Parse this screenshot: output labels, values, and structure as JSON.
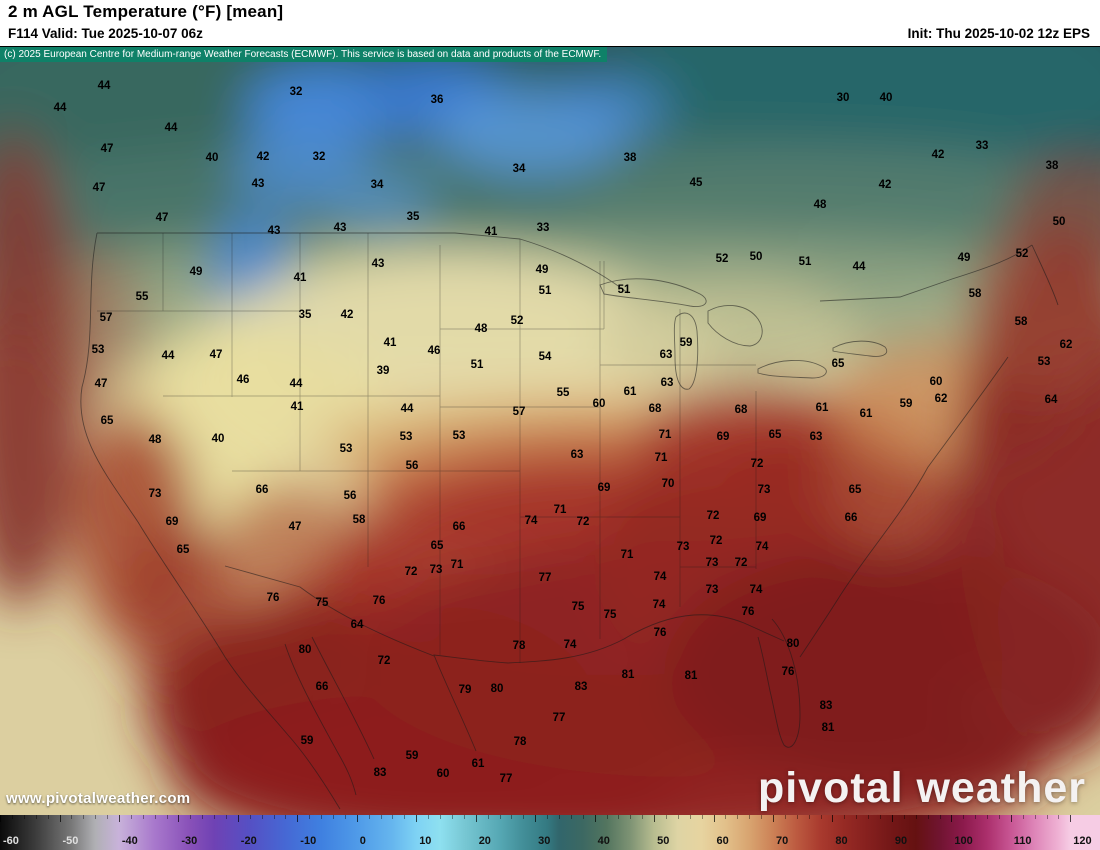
{
  "header": {
    "title": "2 m AGL Temperature (°F) [mean]",
    "valid_label": "F114 Valid: Tue 2025-10-07 06z",
    "init_label": "Init: Thu 2025-10-02 12z EPS"
  },
  "copyright_notice": "(c) 2025 European Centre for Medium-range Weather Forecasts (ECMWF). This service is based on data and products of the ECMWF.",
  "watermark": {
    "url": "www.pivotalweather.com",
    "brand": "pivotal weather"
  },
  "colorbar": {
    "unit": "°F",
    "range": [
      -60,
      120
    ],
    "tick_labels": [
      -60,
      -50,
      -40,
      -30,
      -20,
      -10,
      0,
      10,
      20,
      30,
      40,
      50,
      60,
      70,
      80,
      90,
      100,
      110,
      120
    ],
    "stops": [
      {
        "t": -60,
        "c": "#0a0a0a"
      },
      {
        "t": -54,
        "c": "#3c3c3c"
      },
      {
        "t": -48,
        "c": "#787878"
      },
      {
        "t": -44,
        "c": "#b0b0b4"
      },
      {
        "t": -40,
        "c": "#c8b2da"
      },
      {
        "t": -34,
        "c": "#a878cc"
      },
      {
        "t": -28,
        "c": "#8850b8"
      },
      {
        "t": -24,
        "c": "#6f42b4"
      },
      {
        "t": -18,
        "c": "#5550c4"
      },
      {
        "t": -12,
        "c": "#4668d4"
      },
      {
        "t": -6,
        "c": "#3f80e0"
      },
      {
        "t": 0,
        "c": "#4f9ae8"
      },
      {
        "t": 6,
        "c": "#66b6ee"
      },
      {
        "t": 10,
        "c": "#7ed2f4"
      },
      {
        "t": 14,
        "c": "#8ee0f0"
      },
      {
        "t": 18,
        "c": "#78c8d4"
      },
      {
        "t": 24,
        "c": "#56a8b4"
      },
      {
        "t": 28,
        "c": "#428e98"
      },
      {
        "t": 32,
        "c": "#347a82"
      },
      {
        "t": 34,
        "c": "#31666c"
      },
      {
        "t": 38,
        "c": "#3c6862"
      },
      {
        "t": 42,
        "c": "#53755f"
      },
      {
        "t": 46,
        "c": "#7e9374"
      },
      {
        "t": 50,
        "c": "#b8bd90"
      },
      {
        "t": 54,
        "c": "#ded4a4"
      },
      {
        "t": 58,
        "c": "#e7d4a0"
      },
      {
        "t": 62,
        "c": "#e2c08a"
      },
      {
        "t": 66,
        "c": "#d8a470"
      },
      {
        "t": 70,
        "c": "#cc8156"
      },
      {
        "t": 74,
        "c": "#bc5a40"
      },
      {
        "t": 78,
        "c": "#a93a2e"
      },
      {
        "t": 82,
        "c": "#962a24"
      },
      {
        "t": 86,
        "c": "#85201e"
      },
      {
        "t": 90,
        "c": "#731717"
      },
      {
        "t": 94,
        "c": "#651111"
      },
      {
        "t": 98,
        "c": "#701430"
      },
      {
        "t": 102,
        "c": "#8c1a4c"
      },
      {
        "t": 106,
        "c": "#ab2f6c"
      },
      {
        "t": 110,
        "c": "#c85694"
      },
      {
        "t": 114,
        "c": "#de85b8"
      },
      {
        "t": 118,
        "c": "#efb2d4"
      },
      {
        "t": 120,
        "c": "#f6cce4"
      }
    ]
  },
  "map": {
    "labels": [
      [
        44,
        104,
        86
      ],
      [
        32,
        296,
        92
      ],
      [
        36,
        437,
        100
      ],
      [
        30,
        843,
        98
      ],
      [
        40,
        886,
        98
      ],
      [
        44,
        60,
        108
      ],
      [
        44,
        171,
        128
      ],
      [
        47,
        107,
        149
      ],
      [
        33,
        982,
        146
      ],
      [
        42,
        938,
        155
      ],
      [
        40,
        212,
        158
      ],
      [
        42,
        263,
        157
      ],
      [
        32,
        319,
        157
      ],
      [
        38,
        630,
        158
      ],
      [
        38,
        1052,
        166
      ],
      [
        34,
        519,
        169
      ],
      [
        34,
        377,
        185
      ],
      [
        47,
        99,
        188
      ],
      [
        43,
        258,
        184
      ],
      [
        45,
        696,
        183
      ],
      [
        42,
        885,
        185
      ],
      [
        48,
        820,
        205
      ],
      [
        35,
        413,
        217
      ],
      [
        47,
        162,
        218
      ],
      [
        50,
        1059,
        222
      ],
      [
        33,
        543,
        228
      ],
      [
        43,
        340,
        228
      ],
      [
        43,
        274,
        231
      ],
      [
        41,
        491,
        232
      ],
      [
        50,
        756,
        257
      ],
      [
        52,
        722,
        259
      ],
      [
        49,
        964,
        258
      ],
      [
        52,
        1022,
        254
      ],
      [
        51,
        805,
        262
      ],
      [
        43,
        378,
        264
      ],
      [
        44,
        859,
        267
      ],
      [
        49,
        542,
        270
      ],
      [
        49,
        196,
        272
      ],
      [
        41,
        300,
        278
      ],
      [
        51,
        624,
        290
      ],
      [
        51,
        545,
        291
      ],
      [
        58,
        975,
        294
      ],
      [
        55,
        142,
        297
      ],
      [
        35,
        305,
        315
      ],
      [
        42,
        347,
        315
      ],
      [
        57,
        106,
        318
      ],
      [
        52,
        517,
        321
      ],
      [
        58,
        1021,
        322
      ],
      [
        48,
        481,
        329
      ],
      [
        41,
        390,
        343
      ],
      [
        59,
        686,
        343
      ],
      [
        62,
        1066,
        345
      ],
      [
        53,
        98,
        350
      ],
      [
        46,
        434,
        351
      ],
      [
        63,
        666,
        355
      ],
      [
        47,
        216,
        355
      ],
      [
        44,
        168,
        356
      ],
      [
        54,
        545,
        357
      ],
      [
        53,
        1044,
        362
      ],
      [
        65,
        838,
        364
      ],
      [
        51,
        477,
        365
      ],
      [
        39,
        383,
        371
      ],
      [
        46,
        243,
        380
      ],
      [
        60,
        936,
        382
      ],
      [
        63,
        667,
        383
      ],
      [
        47,
        101,
        384
      ],
      [
        44,
        296,
        384
      ],
      [
        61,
        630,
        392
      ],
      [
        55,
        563,
        393
      ],
      [
        62,
        941,
        399
      ],
      [
        64,
        1051,
        400
      ],
      [
        60,
        599,
        404
      ],
      [
        59,
        906,
        404
      ],
      [
        41,
        297,
        407
      ],
      [
        61,
        822,
        408
      ],
      [
        68,
        655,
        409
      ],
      [
        44,
        407,
        409
      ],
      [
        68,
        741,
        410
      ],
      [
        57,
        519,
        412
      ],
      [
        61,
        866,
        414
      ],
      [
        65,
        107,
        421
      ],
      [
        71,
        665,
        435
      ],
      [
        65,
        775,
        435
      ],
      [
        53,
        406,
        437
      ],
      [
        63,
        816,
        437
      ],
      [
        69,
        723,
        437
      ],
      [
        53,
        459,
        436
      ],
      [
        40,
        218,
        439
      ],
      [
        48,
        155,
        440
      ],
      [
        53,
        346,
        449
      ],
      [
        63,
        577,
        455
      ],
      [
        71,
        661,
        458
      ],
      [
        72,
        757,
        464
      ],
      [
        56,
        412,
        466
      ],
      [
        70,
        668,
        484
      ],
      [
        69,
        604,
        488
      ],
      [
        65,
        855,
        490
      ],
      [
        73,
        764,
        490
      ],
      [
        66,
        262,
        490
      ],
      [
        73,
        155,
        494
      ],
      [
        56,
        350,
        496
      ],
      [
        71,
        560,
        510
      ],
      [
        72,
        713,
        516
      ],
      [
        69,
        760,
        518
      ],
      [
        66,
        851,
        518
      ],
      [
        58,
        359,
        520
      ],
      [
        74,
        531,
        521
      ],
      [
        69,
        172,
        522
      ],
      [
        72,
        583,
        522
      ],
      [
        47,
        295,
        527
      ],
      [
        66,
        459,
        527
      ],
      [
        72,
        716,
        541
      ],
      [
        65,
        437,
        546
      ],
      [
        73,
        683,
        547
      ],
      [
        74,
        762,
        547
      ],
      [
        65,
        183,
        550
      ],
      [
        71,
        627,
        555
      ],
      [
        73,
        712,
        563
      ],
      [
        72,
        741,
        563
      ],
      [
        71,
        457,
        565
      ],
      [
        73,
        436,
        570
      ],
      [
        72,
        411,
        572
      ],
      [
        74,
        660,
        577
      ],
      [
        77,
        545,
        578
      ],
      [
        73,
        712,
        590
      ],
      [
        74,
        756,
        590
      ],
      [
        76,
        273,
        598
      ],
      [
        76,
        379,
        601
      ],
      [
        75,
        322,
        603
      ],
      [
        74,
        659,
        605
      ],
      [
        75,
        578,
        607
      ],
      [
        76,
        748,
        612
      ],
      [
        75,
        610,
        615
      ],
      [
        64,
        357,
        625
      ],
      [
        76,
        660,
        633
      ],
      [
        80,
        793,
        644
      ],
      [
        78,
        519,
        646
      ],
      [
        74,
        570,
        645
      ],
      [
        80,
        305,
        650
      ],
      [
        72,
        384,
        661
      ],
      [
        81,
        628,
        675
      ],
      [
        81,
        691,
        676
      ],
      [
        76,
        788,
        672
      ],
      [
        83,
        581,
        687
      ],
      [
        66,
        322,
        687
      ],
      [
        79,
        465,
        690
      ],
      [
        80,
        497,
        689
      ],
      [
        83,
        826,
        706
      ],
      [
        77,
        559,
        718
      ],
      [
        81,
        828,
        728
      ],
      [
        59,
        307,
        741
      ],
      [
        78,
        520,
        742
      ],
      [
        59,
        412,
        756
      ],
      [
        61,
        478,
        764
      ],
      [
        60,
        443,
        774
      ],
      [
        83,
        380,
        773
      ],
      [
        77,
        506,
        779
      ]
    ]
  }
}
